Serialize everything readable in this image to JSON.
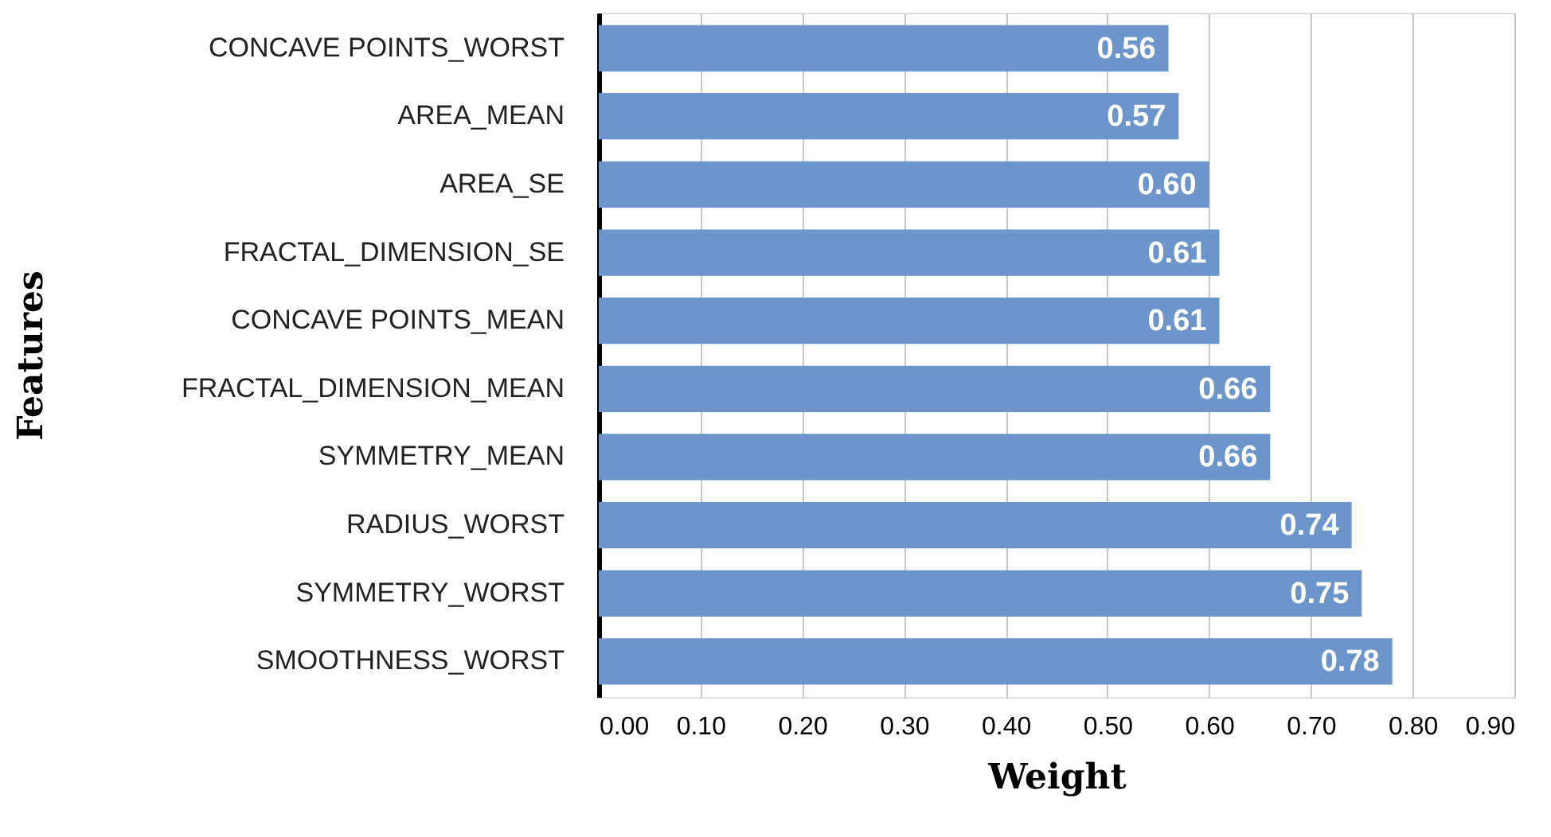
{
  "chart_data": {
    "type": "bar",
    "orientation": "horizontal",
    "categories": [
      "CONCAVE POINTS_WORST",
      "AREA_MEAN",
      "AREA_SE",
      "FRACTAL_DIMENSION_SE",
      "CONCAVE POINTS_MEAN",
      "FRACTAL_DIMENSION_MEAN",
      "SYMMETRY_MEAN",
      "RADIUS_WORST",
      "SYMMETRY_WORST",
      "SMOOTHNESS_WORST"
    ],
    "values": [
      0.56,
      0.57,
      0.6,
      0.61,
      0.61,
      0.66,
      0.66,
      0.74,
      0.75,
      0.78
    ],
    "color": "#6b95cb",
    "value_labels": [
      "0.56",
      "0.57",
      "0.60",
      "0.61",
      "0.61",
      "0.66",
      "0.66",
      "0.74",
      "0.75",
      "0.78"
    ],
    "xlabel": "Weight",
    "ylabel": "Features",
    "xlim": [
      0,
      0.9
    ],
    "xticks": [
      {
        "value": 0,
        "label": "0.00"
      },
      {
        "value": 0.1,
        "label": "0.10"
      },
      {
        "value": 0.2,
        "label": "0.20"
      },
      {
        "value": 0.3,
        "label": "0.30"
      },
      {
        "value": 0.4,
        "label": "0.40"
      },
      {
        "value": 0.5,
        "label": "0.50"
      },
      {
        "value": 0.6,
        "label": "0.60"
      },
      {
        "value": 0.7,
        "label": "0.70"
      },
      {
        "value": 0.8,
        "label": "0.80"
      },
      {
        "value": 0.9,
        "label": "0.90"
      }
    ],
    "grid": "x"
  }
}
